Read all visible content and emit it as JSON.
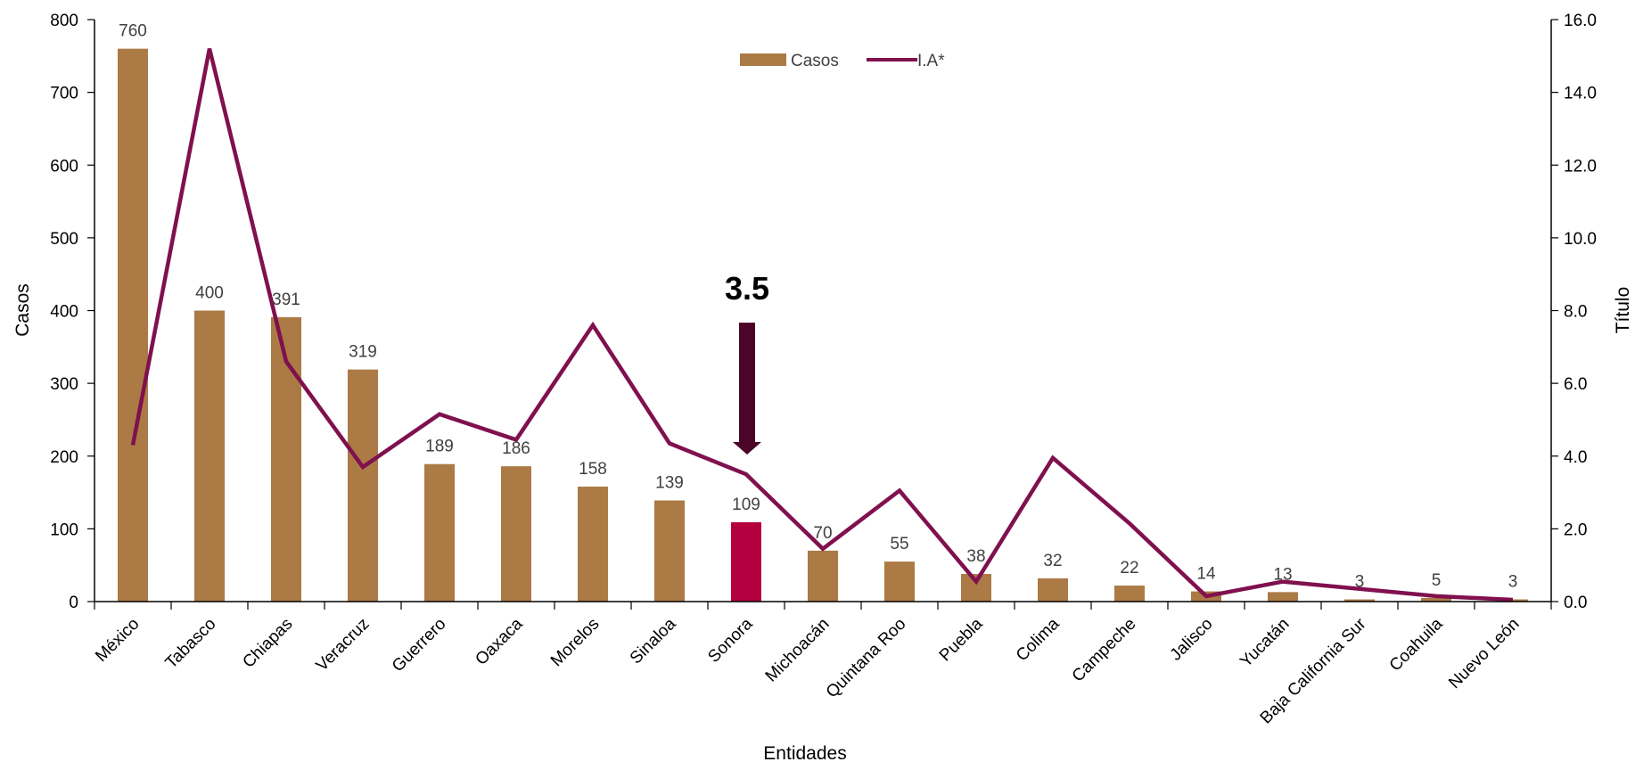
{
  "chart_data": {
    "type": "bar",
    "categories": [
      "México",
      "Tabasco",
      "Chiapas",
      "Veracruz",
      "Guerrero",
      "Oaxaca",
      "Morelos",
      "Sinaloa",
      "Sonora",
      "Michoacán",
      "Quintana Roo",
      "Puebla",
      "Colima",
      "Campeche",
      "Jalisco",
      "Yucatán",
      "Baja California Sur",
      "Coahuila",
      "Nuevo León"
    ],
    "series": [
      {
        "name": "Casos",
        "type": "bar",
        "axis": "left",
        "color": "#AB7A45",
        "highlight_index": 8,
        "highlight_color": "#B5003F",
        "values": [
          760,
          400,
          391,
          319,
          189,
          186,
          158,
          139,
          109,
          70,
          55,
          38,
          32,
          22,
          14,
          13,
          3,
          5,
          3
        ],
        "labels": [
          "760",
          "400",
          "391",
          "319",
          "189",
          "186",
          "158",
          "139",
          "109",
          "70",
          "55",
          "38",
          "32",
          "22",
          "14",
          "13",
          "3",
          "5",
          "3"
        ]
      },
      {
        "name": "I.A*",
        "type": "line",
        "axis": "right",
        "color": "#80104E",
        "values": [
          4.3,
          15.2,
          6.6,
          3.7,
          5.15,
          4.45,
          7.6,
          4.35,
          3.5,
          1.45,
          3.05,
          0.55,
          3.95,
          2.15,
          0.15,
          0.55,
          0.35,
          0.15,
          0.05
        ]
      }
    ],
    "xlabel": "Entidades",
    "ylabel": "Casos",
    "y2label": "Título",
    "ylim": [
      0,
      800
    ],
    "yticks": [
      "0",
      "100",
      "200",
      "300",
      "400",
      "500",
      "600",
      "700",
      "800"
    ],
    "y2lim": [
      0,
      16
    ],
    "y2ticks": [
      "0.0",
      "2.0",
      "4.0",
      "6.0",
      "8.0",
      "10.0",
      "12.0",
      "14.0",
      "16.0"
    ],
    "grid": false,
    "legend": "top-center",
    "annotation": {
      "text": "3.5",
      "category_index": 8,
      "arrow_color": "#4A0528"
    }
  }
}
